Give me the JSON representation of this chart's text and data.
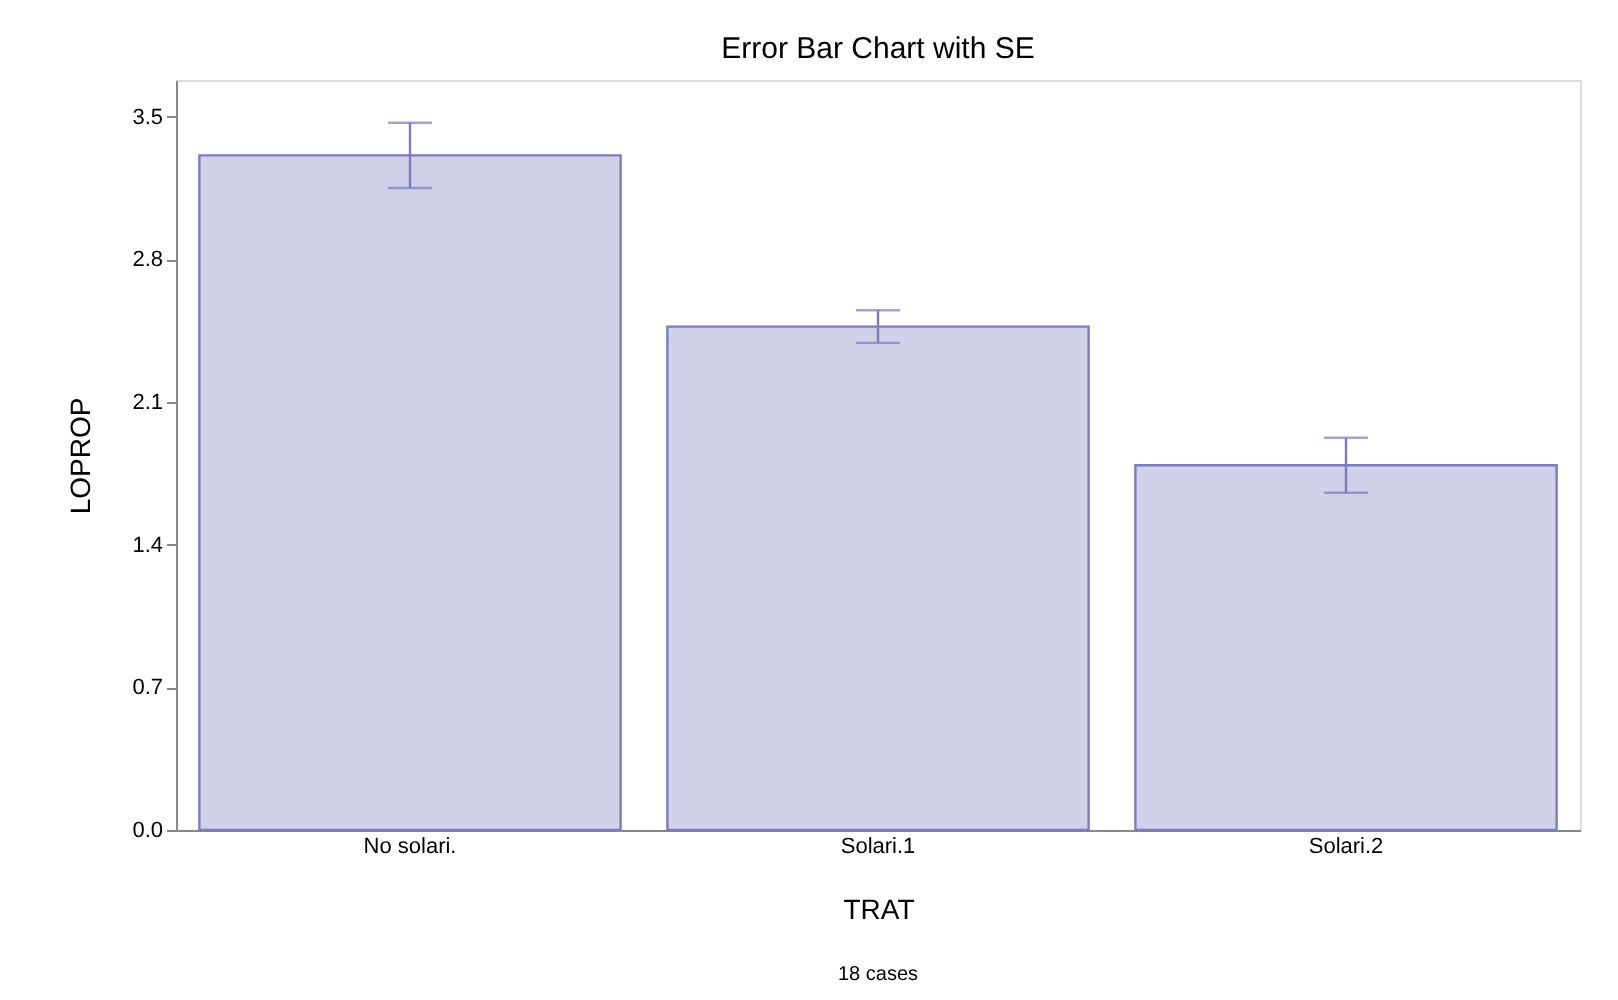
{
  "chart_data": {
    "type": "bar",
    "title": "Error Bar Chart with SE",
    "xlabel": "TRAT",
    "ylabel": "LOPROP",
    "categories": [
      "No solari.",
      "Solari.1",
      "Solari.2"
    ],
    "values": [
      3.31,
      2.47,
      1.79
    ],
    "errors": [
      0.16,
      0.08,
      0.135
    ],
    "color": "#7b7bc0",
    "ylim": [
      0,
      3.68
    ],
    "yticks": [
      {
        "value": 0,
        "label": "0.0"
      },
      0.7,
      1.4,
      2.1,
      2.8,
      3.5
    ],
    "grid": false,
    "legend": false,
    "annotations": [
      "18 cases"
    ]
  }
}
